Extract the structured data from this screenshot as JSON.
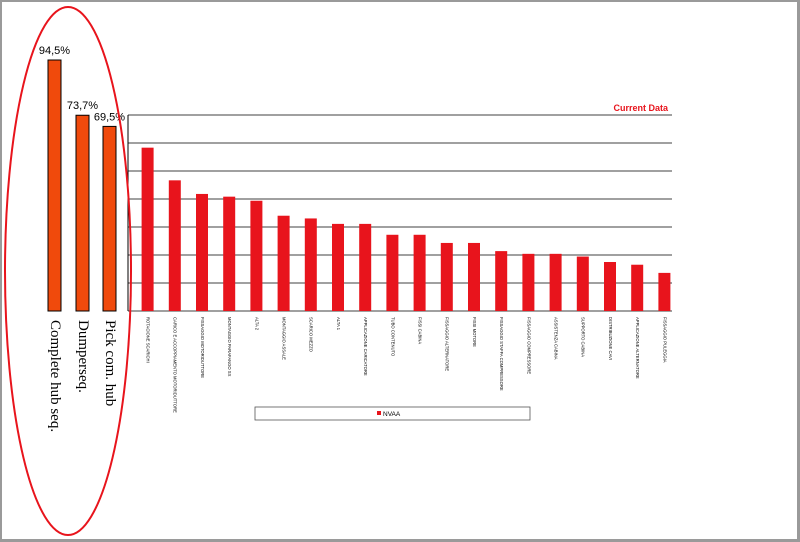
{
  "colors": {
    "ellipse": "#e8141c",
    "callout_bar_fill": "#f04a0c",
    "callout_bar_stroke": "#000000",
    "bar_fill": "#e8141c",
    "grid": "#000000",
    "current_data_text": "#e8141c"
  },
  "callout": {
    "label": "Current Data",
    "legend_label": "NVAA"
  },
  "chart_data": [
    {
      "type": "bar",
      "categories": [
        "Complete hub seq.",
        "Dumperseq.",
        "Pick com. hub"
      ],
      "values": [
        94.5,
        73.7,
        69.5
      ],
      "data_labels": [
        "94,5%",
        "73,7%",
        "69,5%"
      ],
      "ylim": [
        0,
        100
      ]
    },
    {
      "type": "bar",
      "title": "Current Data",
      "categories": [
        "ROTACIONE SCARICHI",
        "CARICO E ACCOPPIAMENTO MOTORIDUTTORE",
        "FISSAGGIO MOTORIDUTTORE",
        "MONTAGGIO PARAFANGO SX",
        "ALTA 2",
        "MONTAGGIO ASSALE",
        "SCARICO MEZZO",
        "ALTA 1",
        "APPLICAZIONE CARICATORE",
        "TUBO CONTENUTO",
        "FISSI CABINA",
        "FISSAGGIO ALTERNATORE",
        "FISSI MOTORE",
        "FISSAGGIO STAFFA COMPRESSORE",
        "FISSAGGIO COMPRESSORE",
        "ASSISTENZA CABINA",
        "SUPPORTO CABINA",
        "DISTRIBUZIONE CAVI",
        "APPLICAZIONE ALTERNATORE",
        "FISSAGGIO PULEGGIA"
      ],
      "values": [
        6.0,
        4.8,
        4.3,
        4.2,
        4.05,
        3.5,
        3.4,
        3.2,
        3.2,
        2.8,
        2.8,
        2.5,
        2.5,
        2.2,
        2.1,
        2.1,
        2.0,
        1.8,
        1.7,
        1.4
      ],
      "ylim": [
        0,
        7.2
      ],
      "legend": [
        "NVAA"
      ],
      "grid": true
    }
  ]
}
